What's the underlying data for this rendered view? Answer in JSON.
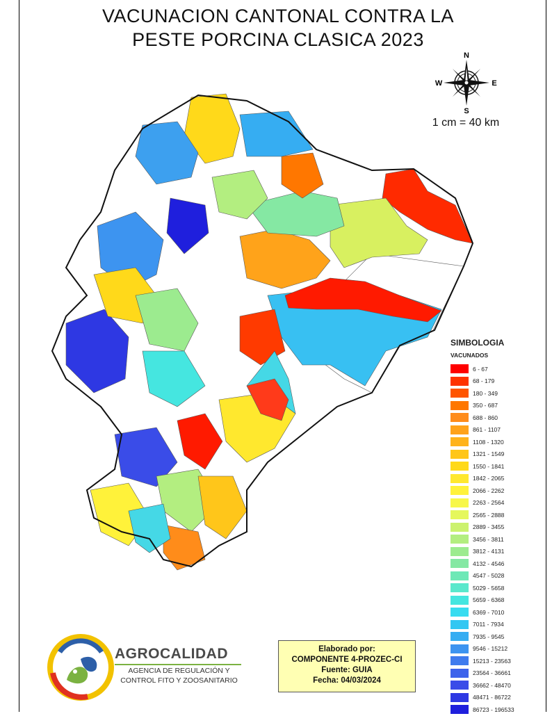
{
  "title_line1": "VACUNACION CANTONAL CONTRA LA",
  "title_line2": "PESTE PORCINA CLASICA 2023",
  "compass": {
    "n": "N",
    "s": "S",
    "e": "E",
    "w": "W"
  },
  "scale_text": "1 cm = 40 km",
  "legend": {
    "title": "SIMBOLOGIA",
    "subtitle": "VACUNADOS",
    "classes": [
      {
        "label": "6 - 67",
        "color": "#ff0000"
      },
      {
        "label": "68 - 179",
        "color": "#ff3300"
      },
      {
        "label": "180 - 349",
        "color": "#ff5500"
      },
      {
        "label": "350 - 687",
        "color": "#ff7700"
      },
      {
        "label": "688 - 860",
        "color": "#ff8c1a"
      },
      {
        "label": "861 - 1107",
        "color": "#ffa31a"
      },
      {
        "label": "1108 - 1320",
        "color": "#ffb31a"
      },
      {
        "label": "1321 - 1549",
        "color": "#ffc61a"
      },
      {
        "label": "1550 - 1841",
        "color": "#ffd91a"
      },
      {
        "label": "1842 - 2065",
        "color": "#ffe82e"
      },
      {
        "label": "2066 - 2262",
        "color": "#fff23a"
      },
      {
        "label": "2263 - 2564",
        "color": "#f7f74a"
      },
      {
        "label": "2565 - 2888",
        "color": "#e5f75c"
      },
      {
        "label": "2889 - 3455",
        "color": "#ccf26e"
      },
      {
        "label": "3456 - 3811",
        "color": "#b3ee80"
      },
      {
        "label": "3812 - 4131",
        "color": "#9ceb8f"
      },
      {
        "label": "4132 - 4546",
        "color": "#85e8a3"
      },
      {
        "label": "4547 - 5028",
        "color": "#6ee8b6"
      },
      {
        "label": "5029 - 5658",
        "color": "#5ae8cc"
      },
      {
        "label": "5659 - 6368",
        "color": "#45e6e0"
      },
      {
        "label": "6369 - 7010",
        "color": "#38dcf0"
      },
      {
        "label": "7011 - 7934",
        "color": "#33c7f2"
      },
      {
        "label": "7935 - 9545",
        "color": "#36adf2"
      },
      {
        "label": "9546 - 15212",
        "color": "#3d94f0"
      },
      {
        "label": "15213 - 23563",
        "color": "#3f7bee"
      },
      {
        "label": "23564 - 36661",
        "color": "#3d63eb"
      },
      {
        "label": "36662 - 48470",
        "color": "#3a4ce8"
      },
      {
        "label": "48471 - 86722",
        "color": "#2e38e3"
      },
      {
        "label": "86723 - 196533",
        "color": "#1f1fdd"
      }
    ]
  },
  "credits": {
    "line1": "Elaborado por:",
    "line2": "COMPONENTE 4-PROZEC-CI",
    "line3": "Fuente: GUIA",
    "line4": "Fecha: 04/03/2024"
  },
  "agency": {
    "name": "AGROCALIDAD",
    "sub1": "AGENCIA DE REGULACIÓN Y",
    "sub2": "CONTROL FITO Y ZOOSANITARIO"
  }
}
